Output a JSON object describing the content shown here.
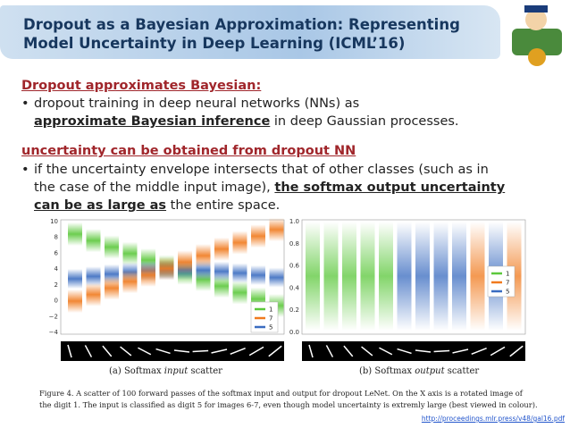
{
  "header": {
    "title_lines": [
      "Dropout as a Bayesian Approximation: Representing",
      "Model Uncertainty in Deep Learning (ICML’16)"
    ]
  },
  "sections": [
    {
      "heading": "Dropout approximates Bayesian:",
      "bullet": "•",
      "lines": [
        [
          "dropout training in deep neural networks (NNs) as"
        ],
        [
          "approximate Bayesian inference",
          " in deep Gaussian processes."
        ]
      ]
    },
    {
      "heading": "uncertainty can be obtained from dropout NN",
      "bullet": "•",
      "lines": [
        [
          "if the uncertainty envelope intersects that of other classes (such as in"
        ],
        [
          "the case of the middle input image), ",
          "the softmax output uncertainty"
        ],
        [
          "can be as large as",
          " the entire space."
        ]
      ]
    }
  ],
  "figure": {
    "left": {
      "yticks": [
        "10",
        "8",
        "6",
        "4",
        "2",
        "0",
        "−2",
        "−4"
      ],
      "legend": [
        "1",
        "7",
        "5"
      ],
      "caption": [
        "(a) Softmax ",
        "input",
        " scatter"
      ]
    },
    "right": {
      "yticks": [
        "1.0",
        "0.8",
        "0.6",
        "0.4",
        "0.2",
        "0.0"
      ],
      "legend": [
        "1",
        "7",
        "5"
      ],
      "caption": [
        "(b) Softmax ",
        "output",
        " scatter"
      ]
    },
    "caption_lines": [
      "Figure 4. A scatter of 100 forward passes of the softmax input and output for dropout LeNet. On the X axis is a rotated image of",
      "the digit 1. The input is classified as digit 5 for images 6-7, even though model uncertainty is extremly large (best viewed in colour)."
    ]
  },
  "link": "http://proceedings.mlr.press/v48/gal16.pdf"
}
